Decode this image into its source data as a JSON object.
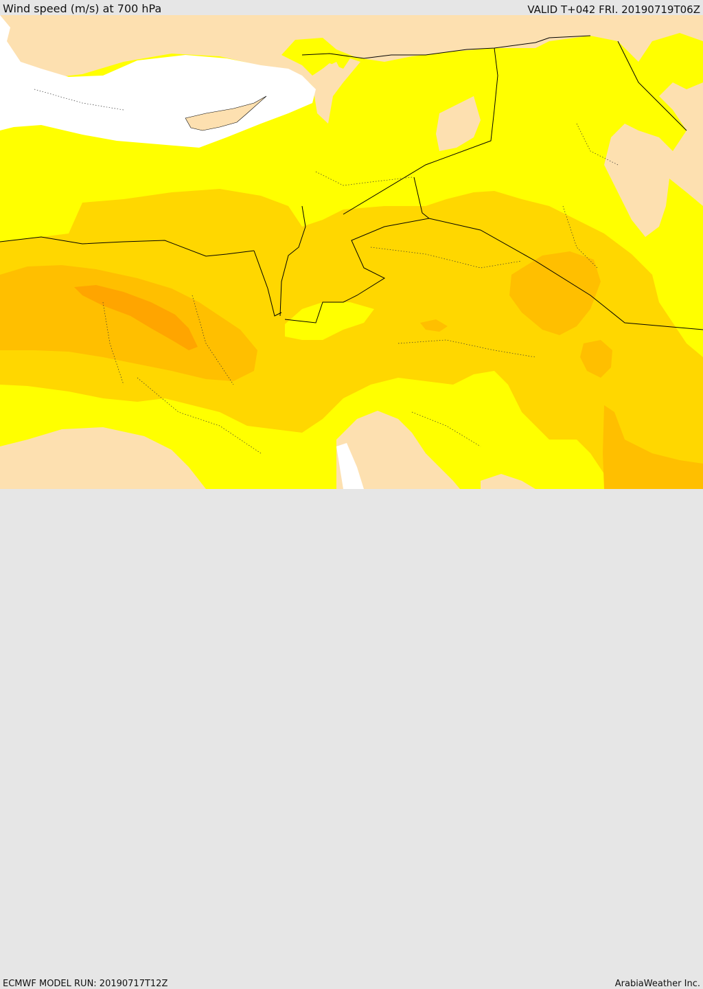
{
  "header": {
    "title": "Wind speed (m/s) at 700 hPa",
    "valid": "VALID T+042 FRI. 20190719T06Z"
  },
  "footer": {
    "model_run": "ECMWF MODEL RUN: 20190717T12Z",
    "credit": "ArabiaWeather Inc."
  },
  "colors": {
    "band_lt5": "#fde0b0",
    "band_5_10": "#ffff00",
    "band_10_15": "#ffd700",
    "band_15_20": "#ffbf00",
    "band_20_25": "#ffa500",
    "sea": "#ffffff",
    "border": "#000000",
    "background": "#e6e6e6"
  }
}
